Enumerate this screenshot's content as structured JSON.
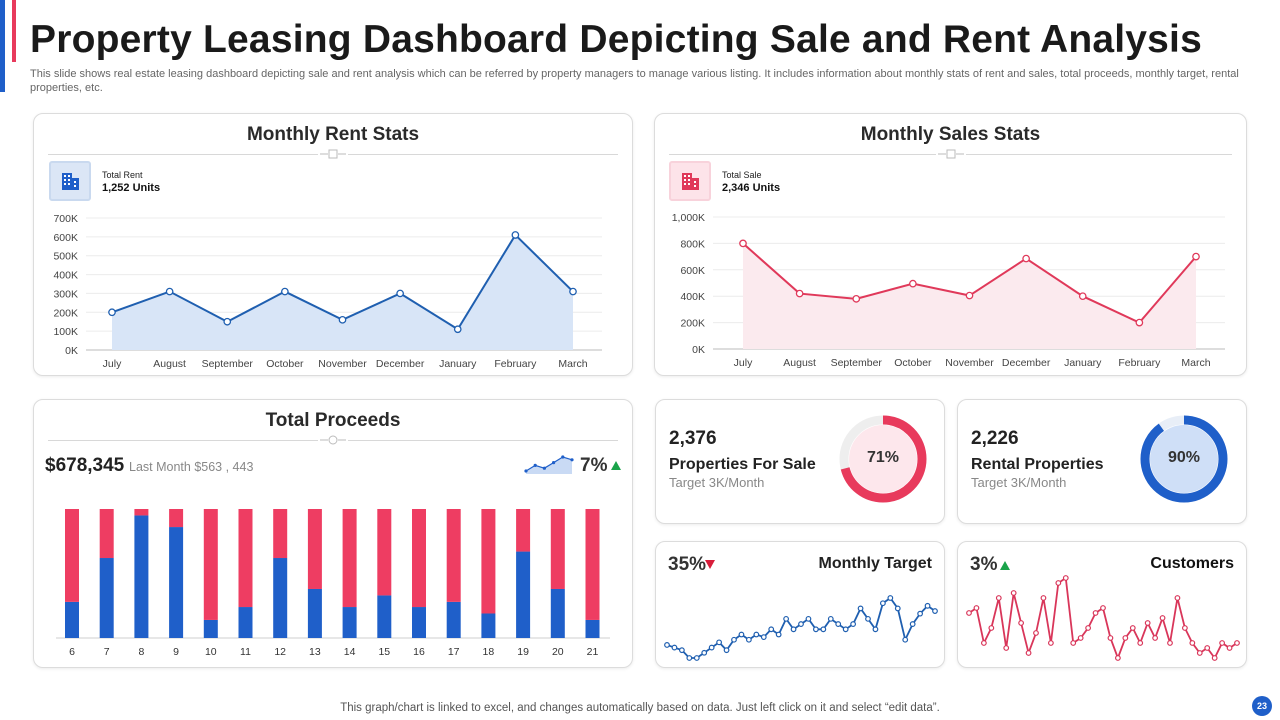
{
  "header": {
    "title": "Property Leasing Dashboard Depicting Sale and Rent Analysis",
    "subtitle": "This slide shows real estate leasing dashboard depicting sale and rent analysis which can be referred by property managers to manage various listing. It includes information about monthly stats of rent and sales, total proceeds, monthly target,  rental properties, etc."
  },
  "rent": {
    "title": "Monthly Rent Stats",
    "stat_label": "Total Rent",
    "stat_value": "1,252 Units"
  },
  "sales": {
    "title": "Monthly Sales Stats",
    "stat_label": "Total Sale",
    "stat_value": "2,346 Units"
  },
  "proceeds": {
    "title": "Total Proceeds",
    "amount": "$678,345",
    "last_month": "Last Month $563  , 443",
    "change": "7%",
    "sparkline_values": [
      3,
      5,
      4,
      6,
      8,
      7
    ]
  },
  "properties_for_sale": {
    "count": "2,376",
    "label": "Properties For Sale",
    "target": "Target  3K/Month",
    "percent_label": "71%",
    "percent": 71
  },
  "rental_properties": {
    "count": "2,226",
    "label": "Rental Properties",
    "target": "Target  3K/Month",
    "percent_label": "90%",
    "percent": 90
  },
  "monthly_target": {
    "percent": "35%",
    "label": "Monthly  Target",
    "values": [
      5,
      4.5,
      4,
      2.5,
      2.5,
      3.5,
      4.5,
      5.5,
      4,
      6,
      7,
      6,
      7,
      6.5,
      8,
      7,
      10,
      8,
      9,
      10,
      8,
      8,
      10,
      9,
      8,
      9,
      12,
      10,
      8,
      13,
      14,
      12,
      6,
      9,
      11,
      12.5,
      11.5
    ]
  },
  "customers": {
    "percent": "3%",
    "label": "Customers",
    "values": [
      12,
      13,
      6,
      9,
      15,
      5,
      16,
      10,
      4,
      8,
      15,
      6,
      18,
      19,
      6,
      7,
      9,
      12,
      13,
      7,
      3,
      7,
      9,
      6,
      10,
      7,
      11,
      6,
      15,
      9,
      6,
      4,
      5,
      3,
      6,
      5,
      6
    ]
  },
  "chart_data": [
    {
      "type": "line",
      "title": "Monthly Rent Stats",
      "categories": [
        "July",
        "August",
        "September",
        "October",
        "November",
        "December",
        "January",
        "February",
        "March"
      ],
      "values": [
        200,
        310,
        150,
        310,
        160,
        300,
        110,
        610,
        310
      ],
      "y_ticks": [
        "0K",
        "100K",
        "200K",
        "300K",
        "400K",
        "500K",
        "600K",
        "700K"
      ],
      "ylim": [
        0,
        700
      ],
      "color": "#1f5fb0",
      "fill": "#d8e5f7"
    },
    {
      "type": "line",
      "title": "Monthly Sales Stats",
      "categories": [
        "July",
        "August",
        "September",
        "October",
        "November",
        "December",
        "January",
        "February",
        "March"
      ],
      "values": [
        800,
        420,
        380,
        495,
        405,
        685,
        400,
        200,
        700
      ],
      "y_ticks": [
        "0K",
        "200K",
        "400K",
        "600K",
        "800K",
        "1,000K"
      ],
      "ylim": [
        0,
        1000
      ],
      "color": "#e0395a",
      "fill": "#fbeaee"
    },
    {
      "type": "bar",
      "title": "Total Proceeds",
      "stacked": true,
      "categories": [
        "6",
        "7",
        "8",
        "9",
        "10",
        "11",
        "12",
        "13",
        "14",
        "15",
        "16",
        "17",
        "18",
        "19",
        "20",
        "21"
      ],
      "series": [
        {
          "name": "Blue",
          "color": "#1f5fc9",
          "values": [
            28,
            62,
            95,
            86,
            14,
            24,
            62,
            38,
            24,
            33,
            24,
            28,
            19,
            67,
            38,
            14
          ]
        },
        {
          "name": "Red",
          "color": "#ee3d62",
          "values": [
            72,
            38,
            5,
            14,
            86,
            76,
            38,
            62,
            76,
            67,
            76,
            72,
            81,
            33,
            62,
            86
          ]
        }
      ],
      "ylim": [
        0,
        100
      ]
    }
  ]
}
